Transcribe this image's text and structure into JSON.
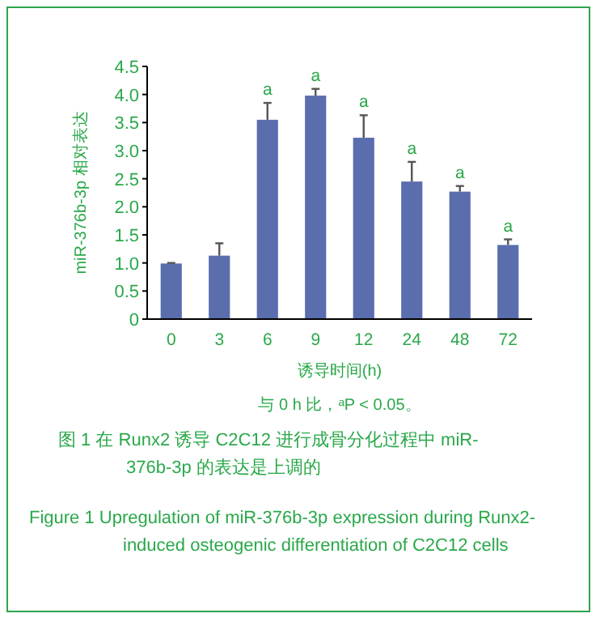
{
  "chart_data": {
    "type": "bar",
    "title": "图 1  在 Runx2 诱导 C2C12 进行成骨分化过程中 miR-376b-3p 的表达是上调的",
    "subtitle": "Figure 1  Upregulation of miR-376b-3p expression during Runx2-induced osteogenic differentiation of C2C12 cells",
    "xlabel": "诱导时间(h)",
    "ylabel": "miR-376b-3p 相对表达",
    "categories": [
      "0",
      "3",
      "6",
      "9",
      "12",
      "24",
      "48",
      "72"
    ],
    "values": [
      0.99,
      1.13,
      3.55,
      3.98,
      3.23,
      2.45,
      2.27,
      1.32
    ],
    "errors": [
      0.01,
      0.22,
      0.3,
      0.12,
      0.4,
      0.35,
      0.1,
      0.1
    ],
    "color": "#5a6eae",
    "ylim": [
      0,
      4.5
    ],
    "yticks": [
      0,
      {
        "value": 0.5,
        "label": "0.5"
      },
      {
        "value": 1,
        "label": "1.0"
      },
      {
        "value": 1.5,
        "label": "1.5"
      },
      {
        "value": 2,
        "label": "2.0"
      },
      {
        "value": 2.5,
        "label": "2.5"
      },
      {
        "value": 3,
        "label": "3.0"
      },
      {
        "value": 3.5,
        "label": "3.5"
      },
      {
        "value": 4,
        "label": "4.0"
      },
      {
        "value": 4.5,
        "label": "4.5"
      }
    ],
    "annotations": [
      {
        "text": "a",
        "x": "6",
        "y": 3.85
      },
      {
        "text": "a",
        "x": "9",
        "y": 4.1
      },
      {
        "text": "a",
        "x": "12",
        "y": 3.63
      },
      {
        "text": "a",
        "x": "24",
        "y": 2.8
      },
      {
        "text": "a",
        "x": "48",
        "y": 2.37
      },
      {
        "text": "a",
        "x": "72",
        "y": 1.42
      },
      "与 0 h 比，ᵃP < 0.05。"
    ]
  }
}
